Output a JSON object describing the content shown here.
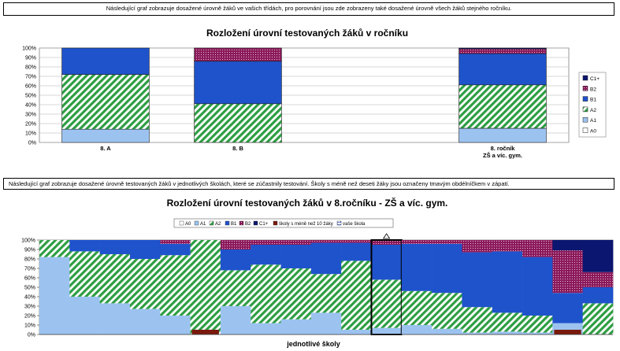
{
  "notes": {
    "top": "Následující graf zobrazuje dosažené úrovně žáků ve vašich třídách, pro porovnání jsou zde zobrazeny také dosažené úrovně všech žáků stejného ročníku.",
    "middle": "Následující graf zobrazuje dosažené úrovně testovaných žáků v jednotlivých školách, které se zúčastnily testování. Školy s méně než deseti žáky jsou označeny tmavým obdélníčkem v zápatí."
  },
  "colors": {
    "A0": "#ffffff",
    "A1": "#9cc3f0",
    "A2": "#2e9e43",
    "B1": "#1f53cc",
    "B2": "#8b1a5b",
    "C1plus": "#0b1670",
    "small_school": "#7a1a0e",
    "your_school": "#3355cc"
  },
  "chart_data": [
    {
      "type": "bar",
      "stacked": true,
      "title": "Rozložení úrovní testovaných žáků v ročníku",
      "categories": [
        "8. A",
        "8. B",
        "",
        "8. ročník\nZŠ a víc. gym."
      ],
      "ylim": [
        0,
        100
      ],
      "yticks": [
        "0%",
        "10%",
        "20%",
        "30%",
        "40%",
        "50%",
        "60%",
        "70%",
        "80%",
        "90%",
        "100%"
      ],
      "grid": true,
      "legend_position": "right",
      "legend_order": [
        "C1+",
        "B2",
        "B1",
        "A2",
        "A1",
        "A0"
      ],
      "series": [
        {
          "name": "A0",
          "values": [
            0,
            0,
            0,
            0
          ]
        },
        {
          "name": "A1",
          "values": [
            14,
            0,
            0,
            15
          ]
        },
        {
          "name": "A2",
          "values": [
            58,
            41,
            0,
            46
          ]
        },
        {
          "name": "B1",
          "values": [
            28,
            45,
            0,
            33
          ]
        },
        {
          "name": "B2",
          "values": [
            0,
            14,
            0,
            5
          ]
        },
        {
          "name": "C1+",
          "values": [
            0,
            0,
            0,
            1
          ]
        }
      ]
    },
    {
      "type": "bar",
      "stacked": true,
      "title": "Rozložení úrovní testovaných žáků v 8.ročníku - ZŠ a víc. gym.",
      "xlabel": "jednotlivé školy",
      "ylim": [
        0,
        100
      ],
      "yticks": [
        "0%",
        "10%",
        "20%",
        "30%",
        "40%",
        "50%",
        "60%",
        "70%",
        "80%",
        "90%",
        "100%"
      ],
      "legend_position": "top",
      "legend": [
        "A0",
        "A1",
        "A2",
        "B1",
        "B2",
        "C1+",
        "školy s méně než 10 žáky",
        "vaše škola"
      ],
      "series_names": [
        "A0",
        "A1",
        "A2",
        "B1",
        "B2",
        "C1+"
      ],
      "schools": [
        {
          "values": [
            0,
            82,
            18,
            0,
            0,
            0
          ],
          "small": false
        },
        {
          "values": [
            0,
            40,
            48,
            12,
            0,
            0
          ],
          "small": false
        },
        {
          "values": [
            0,
            33,
            52,
            15,
            0,
            0
          ],
          "small": false
        },
        {
          "values": [
            0,
            27,
            53,
            20,
            0,
            0
          ],
          "small": false
        },
        {
          "values": [
            0,
            20,
            64,
            12,
            4,
            0
          ],
          "small": false
        },
        {
          "values": [
            0,
            0,
            100,
            0,
            0,
            0
          ],
          "small": true
        },
        {
          "values": [
            0,
            30,
            38,
            22,
            10,
            0
          ],
          "small": false
        },
        {
          "values": [
            0,
            12,
            62,
            21,
            5,
            0
          ],
          "small": false
        },
        {
          "values": [
            0,
            16,
            54,
            25,
            5,
            0
          ],
          "small": false
        },
        {
          "values": [
            0,
            23,
            41,
            33,
            3,
            0
          ],
          "small": false
        },
        {
          "values": [
            0,
            5,
            73,
            19,
            3,
            0
          ],
          "small": false
        },
        {
          "values": [
            0,
            7,
            51,
            37,
            5,
            0
          ],
          "small": false,
          "yours": true
        },
        {
          "values": [
            0,
            10,
            36,
            50,
            4,
            0
          ],
          "small": false
        },
        {
          "values": [
            0,
            6,
            38,
            52,
            4,
            0
          ],
          "small": false
        },
        {
          "values": [
            0,
            2,
            27,
            58,
            13,
            0
          ],
          "small": false
        },
        {
          "values": [
            0,
            3,
            20,
            65,
            12,
            0
          ],
          "small": false
        },
        {
          "values": [
            0,
            2,
            18,
            62,
            18,
            0
          ],
          "small": false
        },
        {
          "values": [
            0,
            12,
            0,
            32,
            45,
            11
          ],
          "small": true
        },
        {
          "values": [
            0,
            0,
            33,
            17,
            16,
            34
          ],
          "small": false
        }
      ]
    }
  ]
}
